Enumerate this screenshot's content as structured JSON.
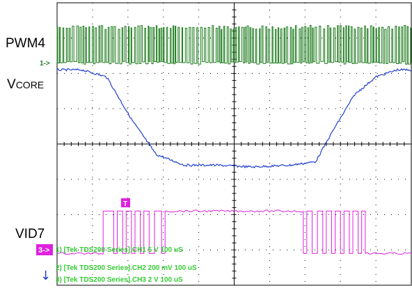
{
  "labels": {
    "pwm": "PWM4",
    "vcore_main": "V",
    "vcore_sub": "CORE",
    "vid": "VID7"
  },
  "markers": {
    "ch1": "1->",
    "ch3": "3->",
    "trigger": "T",
    "arrow": "↓"
  },
  "channel_info": [
    "1) [Tek TDS200 Series].CH1  5  V    100 uS",
    "2) [Tek TDS200 Series].CH2  200 mV    100 uS",
    "3) [Tek TDS200 Series].CH3  2  V    100 uS"
  ],
  "colors": {
    "ch1": "#1a7a1a",
    "ch2": "#1f3fd0",
    "ch3": "#e020e0",
    "info_text": "#33cc33",
    "grid": "#000000"
  },
  "chart_data": {
    "type": "line",
    "grid": true,
    "divisions": {
      "x": 10,
      "y": 8
    },
    "series": [
      {
        "name": "PWM4",
        "kind": "pwm",
        "x_range": [
          0,
          10
        ],
        "high_div": 7.3,
        "low_div": 6.3
      },
      {
        "name": "VCORE",
        "x": [
          0,
          0.7,
          1.4,
          2.1,
          2.8,
          3.6,
          4.5,
          5.5,
          6.6,
          7.3,
          7.8,
          8.4,
          9.0,
          9.6,
          10
        ],
        "y": [
          6.1,
          6.1,
          5.9,
          4.7,
          3.7,
          3.4,
          3.4,
          3.35,
          3.4,
          3.5,
          4.4,
          5.4,
          5.9,
          6.1,
          6.1
        ]
      },
      {
        "name": "VID7",
        "kind": "digital",
        "high_div": 2.1,
        "low_div": 0.9,
        "transitions": [
          [
            0,
            0
          ],
          [
            1.3,
            1
          ],
          [
            1.6,
            0
          ],
          [
            1.7,
            1
          ],
          [
            1.85,
            0
          ],
          [
            1.95,
            1
          ],
          [
            2.1,
            0
          ],
          [
            2.2,
            1
          ],
          [
            2.35,
            0
          ],
          [
            2.45,
            1
          ],
          [
            2.6,
            0
          ],
          [
            2.75,
            1
          ],
          [
            2.95,
            0
          ],
          [
            3.05,
            1
          ],
          [
            6.95,
            0
          ],
          [
            7.05,
            1
          ],
          [
            7.2,
            0
          ],
          [
            7.35,
            1
          ],
          [
            7.5,
            0
          ],
          [
            7.6,
            1
          ],
          [
            7.75,
            0
          ],
          [
            7.85,
            1
          ],
          [
            8.0,
            0
          ],
          [
            8.1,
            1
          ],
          [
            8.25,
            0
          ],
          [
            8.35,
            1
          ],
          [
            8.5,
            0
          ],
          [
            8.6,
            1
          ],
          [
            8.7,
            0
          ]
        ]
      }
    ]
  }
}
